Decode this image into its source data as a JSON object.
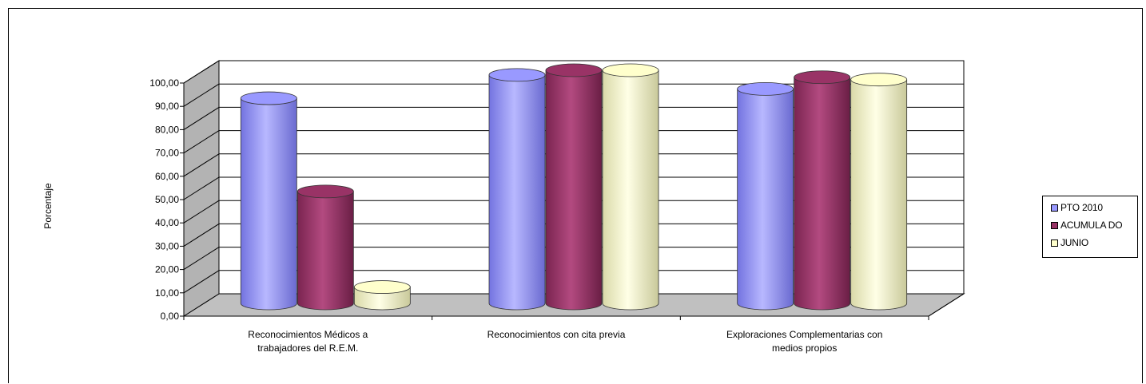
{
  "chart_data": {
    "type": "bar",
    "ylabel": "Porcentaje",
    "ylim": [
      0,
      100
    ],
    "ytick_labels": [
      "0,00",
      "10,00",
      "20,00",
      "30,00",
      "40,00",
      "50,00",
      "60,00",
      "70,00",
      "80,00",
      "90,00",
      "100,00"
    ],
    "categories": [
      [
        "Reconocimientos Médicos a",
        "trabajadores del R.E.M."
      ],
      [
        "Reconocimientos con cita previa"
      ],
      [
        "Exploraciones Complementarias con",
        "medios propios"
      ]
    ],
    "series": [
      {
        "name": "PTO  2010",
        "color": "#9999ff",
        "values": [
          88,
          98,
          92
        ]
      },
      {
        "name": "ACUMULA DO",
        "color": "#993366",
        "values": [
          48,
          100,
          97
        ]
      },
      {
        "name": "JUNIO",
        "color": "#ffffcc",
        "values": [
          7,
          100,
          96
        ]
      }
    ],
    "grid": true,
    "legend_position": "right"
  }
}
